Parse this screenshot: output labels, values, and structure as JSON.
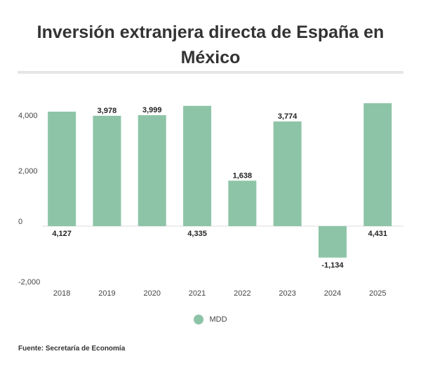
{
  "chart_data": {
    "type": "bar",
    "title": "Inversión extranjera directa de España en México",
    "categories": [
      "2018",
      "2019",
      "2020",
      "2021",
      "2022",
      "2023",
      "2024",
      "2025"
    ],
    "series": [
      {
        "name": "MDD",
        "values": [
          4127,
          3978,
          3999,
          4335,
          1638,
          3774,
          -1134,
          4431
        ]
      }
    ],
    "data_labels": [
      "4,127",
      "3,978",
      "3,999",
      "4,335",
      "1,638",
      "3,774",
      "-1,134",
      "4,431"
    ],
    "label_position": [
      "below",
      "above",
      "above",
      "below",
      "above",
      "above",
      "below",
      "below"
    ],
    "yticks": [
      4000,
      2000,
      0,
      -2000
    ],
    "ytick_labels": [
      "4,000",
      "2,000",
      "0",
      "-2,000"
    ],
    "ylim": [
      -2000,
      4500
    ],
    "grid": false,
    "legend_placement": "bottom",
    "bar_color": "#8dc4a7",
    "xlabel": "",
    "ylabel": ""
  },
  "source": "Fuente: Secretaría de Economía"
}
